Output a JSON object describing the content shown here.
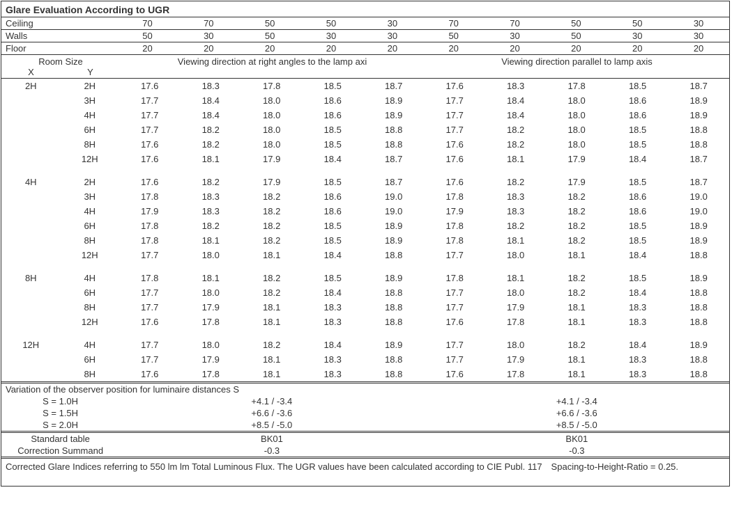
{
  "title": "Glare Evaluation According to UGR",
  "reflectances": {
    "rows": [
      {
        "label": "Ceiling",
        "vals": [
          "70",
          "70",
          "50",
          "50",
          "30",
          "70",
          "70",
          "50",
          "50",
          "30"
        ]
      },
      {
        "label": "Walls",
        "vals": [
          "50",
          "30",
          "50",
          "30",
          "30",
          "50",
          "30",
          "50",
          "30",
          "30"
        ]
      },
      {
        "label": "Floor",
        "vals": [
          "20",
          "20",
          "20",
          "20",
          "20",
          "20",
          "20",
          "20",
          "20",
          "20"
        ]
      }
    ]
  },
  "room_size_label": "Room Size",
  "x_label": "X",
  "y_label": "Y",
  "dir1": "Viewing direction at right angles to the lamp axi",
  "dir2": "Viewing direction parallel to lamp axis",
  "groups": [
    {
      "x": "2H",
      "rows": [
        {
          "y": "2H",
          "v": [
            "17.6",
            "18.3",
            "17.8",
            "18.5",
            "18.7",
            "17.6",
            "18.3",
            "17.8",
            "18.5",
            "18.7"
          ]
        },
        {
          "y": "3H",
          "v": [
            "17.7",
            "18.4",
            "18.0",
            "18.6",
            "18.9",
            "17.7",
            "18.4",
            "18.0",
            "18.6",
            "18.9"
          ]
        },
        {
          "y": "4H",
          "v": [
            "17.7",
            "18.4",
            "18.0",
            "18.6",
            "18.9",
            "17.7",
            "18.4",
            "18.0",
            "18.6",
            "18.9"
          ]
        },
        {
          "y": "6H",
          "v": [
            "17.7",
            "18.2",
            "18.0",
            "18.5",
            "18.8",
            "17.7",
            "18.2",
            "18.0",
            "18.5",
            "18.8"
          ]
        },
        {
          "y": "8H",
          "v": [
            "17.6",
            "18.2",
            "18.0",
            "18.5",
            "18.8",
            "17.6",
            "18.2",
            "18.0",
            "18.5",
            "18.8"
          ]
        },
        {
          "y": "12H",
          "v": [
            "17.6",
            "18.1",
            "17.9",
            "18.4",
            "18.7",
            "17.6",
            "18.1",
            "17.9",
            "18.4",
            "18.7"
          ]
        }
      ]
    },
    {
      "x": "4H",
      "rows": [
        {
          "y": "2H",
          "v": [
            "17.6",
            "18.2",
            "17.9",
            "18.5",
            "18.7",
            "17.6",
            "18.2",
            "17.9",
            "18.5",
            "18.7"
          ]
        },
        {
          "y": "3H",
          "v": [
            "17.8",
            "18.3",
            "18.2",
            "18.6",
            "19.0",
            "17.8",
            "18.3",
            "18.2",
            "18.6",
            "19.0"
          ]
        },
        {
          "y": "4H",
          "v": [
            "17.9",
            "18.3",
            "18.2",
            "18.6",
            "19.0",
            "17.9",
            "18.3",
            "18.2",
            "18.6",
            "19.0"
          ]
        },
        {
          "y": "6H",
          "v": [
            "17.8",
            "18.2",
            "18.2",
            "18.5",
            "18.9",
            "17.8",
            "18.2",
            "18.2",
            "18.5",
            "18.9"
          ]
        },
        {
          "y": "8H",
          "v": [
            "17.8",
            "18.1",
            "18.2",
            "18.5",
            "18.9",
            "17.8",
            "18.1",
            "18.2",
            "18.5",
            "18.9"
          ]
        },
        {
          "y": "12H",
          "v": [
            "17.7",
            "18.0",
            "18.1",
            "18.4",
            "18.8",
            "17.7",
            "18.0",
            "18.1",
            "18.4",
            "18.8"
          ]
        }
      ]
    },
    {
      "x": "8H",
      "rows": [
        {
          "y": "4H",
          "v": [
            "17.8",
            "18.1",
            "18.2",
            "18.5",
            "18.9",
            "17.8",
            "18.1",
            "18.2",
            "18.5",
            "18.9"
          ]
        },
        {
          "y": "6H",
          "v": [
            "17.7",
            "18.0",
            "18.2",
            "18.4",
            "18.8",
            "17.7",
            "18.0",
            "18.2",
            "18.4",
            "18.8"
          ]
        },
        {
          "y": "8H",
          "v": [
            "17.7",
            "17.9",
            "18.1",
            "18.3",
            "18.8",
            "17.7",
            "17.9",
            "18.1",
            "18.3",
            "18.8"
          ]
        },
        {
          "y": "12H",
          "v": [
            "17.6",
            "17.8",
            "18.1",
            "18.3",
            "18.8",
            "17.6",
            "17.8",
            "18.1",
            "18.3",
            "18.8"
          ]
        }
      ]
    },
    {
      "x": "12H",
      "rows": [
        {
          "y": "4H",
          "v": [
            "17.7",
            "18.0",
            "18.2",
            "18.4",
            "18.9",
            "17.7",
            "18.0",
            "18.2",
            "18.4",
            "18.9"
          ]
        },
        {
          "y": "6H",
          "v": [
            "17.7",
            "17.9",
            "18.1",
            "18.3",
            "18.8",
            "17.7",
            "17.9",
            "18.1",
            "18.3",
            "18.8"
          ]
        },
        {
          "y": "8H",
          "v": [
            "17.6",
            "17.8",
            "18.1",
            "18.3",
            "18.8",
            "17.6",
            "17.8",
            "18.1",
            "18.3",
            "18.8"
          ]
        }
      ]
    }
  ],
  "variation_title": "Variation of the observer position for luminaire distances S",
  "variation_rows": [
    {
      "s": "S = 1.0H",
      "a": "+4.1 / -3.4",
      "b": "+4.1 / -3.4"
    },
    {
      "s": "S = 1.5H",
      "a": "+6.6 / -3.6",
      "b": "+6.6 / -3.6"
    },
    {
      "s": "S = 2.0H",
      "a": "+8.5 / -5.0",
      "b": "+8.5 / -5.0"
    }
  ],
  "std_rows": [
    {
      "s": "Standard table",
      "a": "BK01",
      "b": "BK01"
    },
    {
      "s": "Correction Summand",
      "a": "-0.3",
      "b": "-0.3"
    }
  ],
  "footer": "Corrected Glare Indices referring to 550 lm lm Total Luminous Flux. The UGR values have been calculated according to CIE Publ. 117 Spacing-to-Height-Ratio = 0.25.",
  "style": {
    "background": "#ffffff",
    "text_color": "#333333",
    "border_color": "#333333",
    "title_fontsize": 14,
    "body_fontsize": 13
  }
}
